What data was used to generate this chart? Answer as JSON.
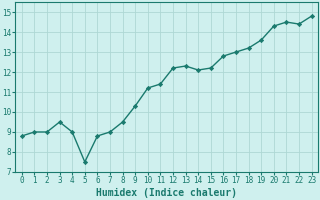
{
  "x": [
    0,
    1,
    2,
    3,
    4,
    5,
    6,
    7,
    8,
    9,
    10,
    11,
    12,
    13,
    14,
    15,
    16,
    17,
    18,
    19,
    20,
    21,
    22,
    23
  ],
  "y": [
    8.8,
    9.0,
    9.0,
    9.5,
    9.0,
    7.5,
    8.8,
    9.0,
    9.5,
    10.3,
    11.2,
    11.4,
    12.2,
    12.3,
    12.1,
    12.2,
    12.8,
    13.0,
    13.2,
    13.6,
    14.3,
    14.5,
    14.4,
    14.8
  ],
  "line_color": "#1a7a6e",
  "marker": "D",
  "marker_size": 2.2,
  "bg_color": "#cff0ee",
  "grid_color": "#aed8d4",
  "xlabel": "Humidex (Indice chaleur)",
  "xlim": [
    -0.5,
    23.5
  ],
  "ylim": [
    7,
    15.5
  ],
  "yticks": [
    7,
    8,
    9,
    10,
    11,
    12,
    13,
    14,
    15
  ],
  "xticks": [
    0,
    1,
    2,
    3,
    4,
    5,
    6,
    7,
    8,
    9,
    10,
    11,
    12,
    13,
    14,
    15,
    16,
    17,
    18,
    19,
    20,
    21,
    22,
    23
  ],
  "tick_fontsize": 5.5,
  "label_fontsize": 7.0,
  "line_width": 1.0,
  "spine_color": "#1a7a6e"
}
